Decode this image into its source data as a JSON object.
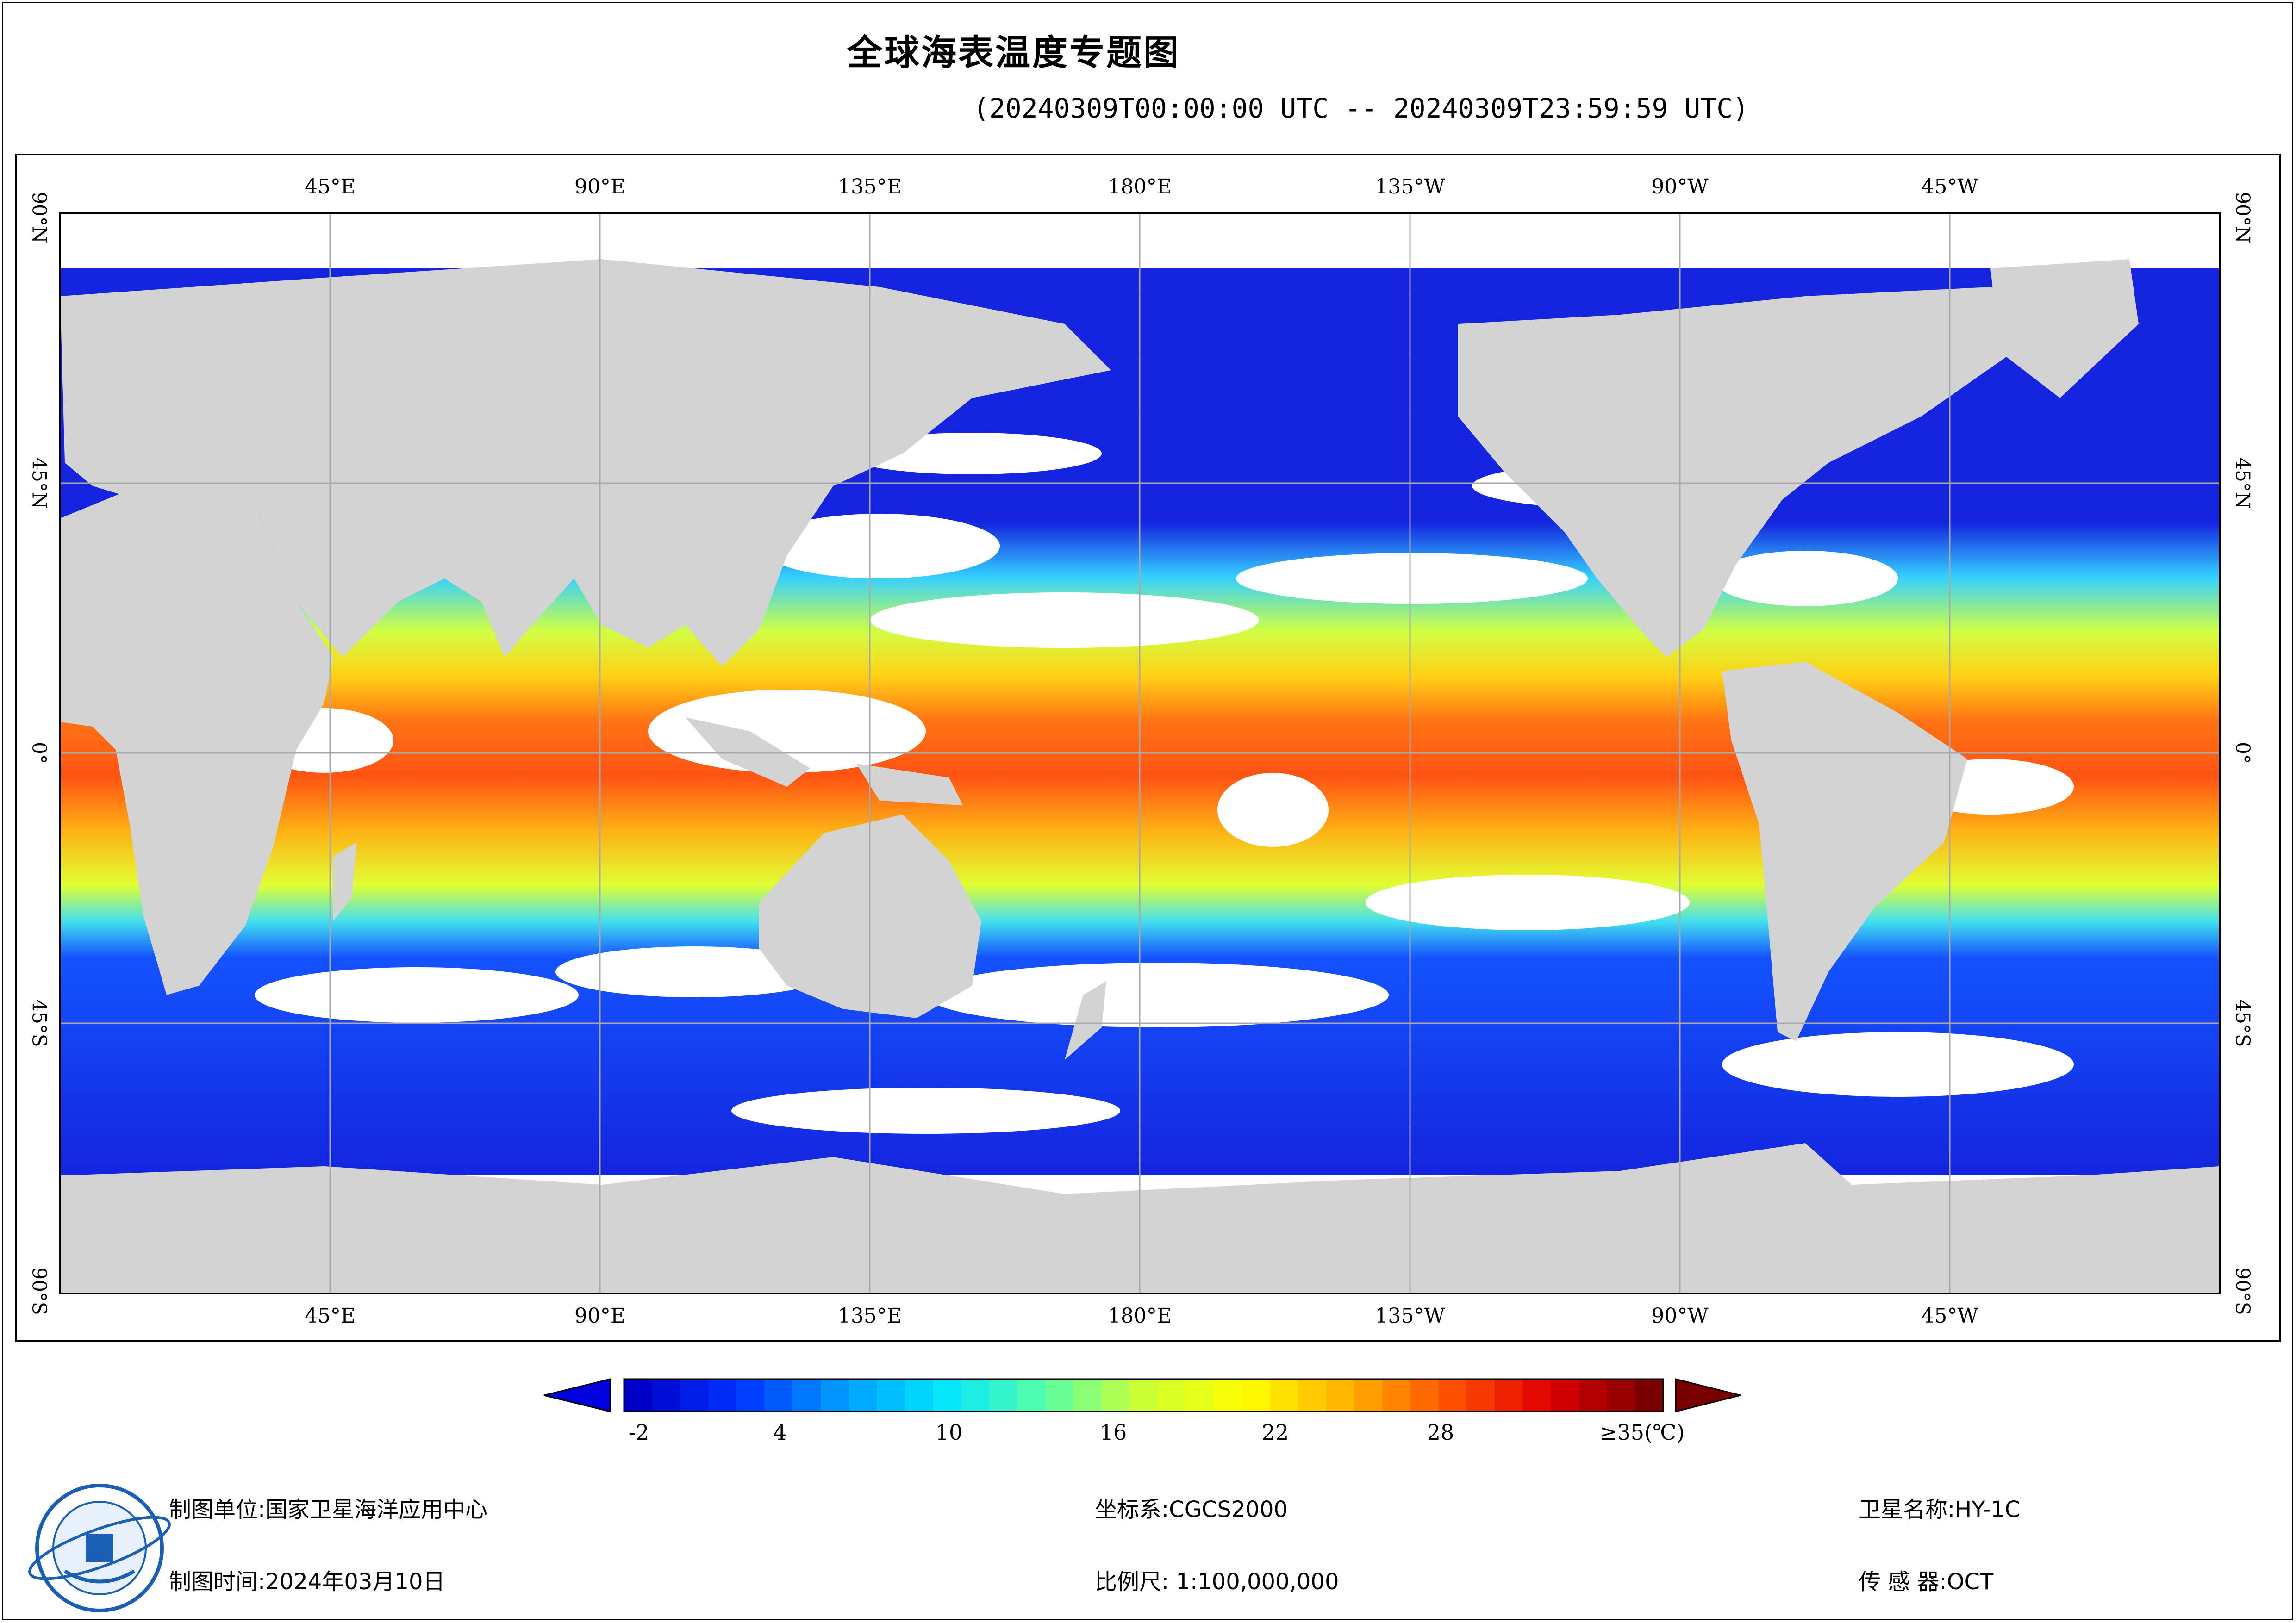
{
  "title": "全球海表温度专题图",
  "subtitle": "(20240309T00:00:00 UTC -- 20240309T23:59:59 UTC)",
  "map": {
    "lon_labels": [
      "45°E",
      "90°E",
      "135°E",
      "180°E",
      "135°W",
      "90°W",
      "45°W"
    ],
    "lat_labels": [
      "90°N",
      "45°N",
      "0°",
      "45°S",
      "90°S"
    ],
    "colors": {
      "land": "#d3d3d3",
      "no_data": "#ffffff",
      "grid": "#a9a9a9"
    }
  },
  "colorbar": {
    "tick_labels": [
      "-2",
      "4",
      "10",
      "16",
      "22",
      "28"
    ],
    "max_label": "≥35(℃)",
    "min_value": -2,
    "max_value": 35,
    "stops": [
      "#0000c8",
      "#0033ff",
      "#0099ff",
      "#00e5ff",
      "#55ffaa",
      "#ccff33",
      "#ffff00",
      "#ffb300",
      "#ff5500",
      "#e00000",
      "#7a0000"
    ]
  },
  "footer": {
    "unit": "制图单位:国家卫星海洋应用中心",
    "date": "制图时间:2024年03月10日",
    "crs": "坐标系:CGCS2000",
    "scale": "比例尺: 1:100,000,000",
    "satellite": "卫星名称:HY-1C",
    "sensor": "传 感 器:OCT",
    "logo_icon": "nsoas-logo-icon"
  }
}
